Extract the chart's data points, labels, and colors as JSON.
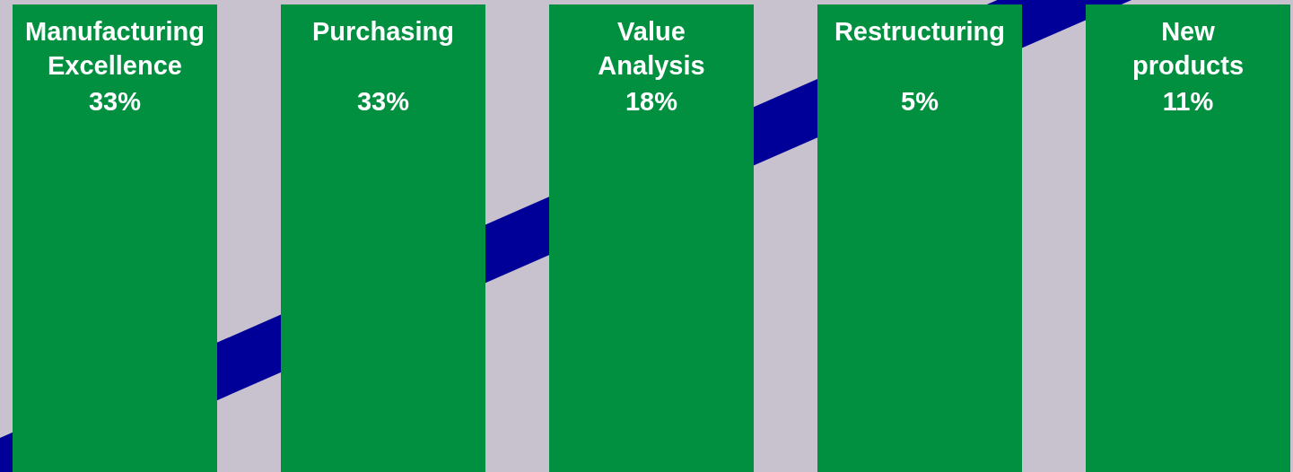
{
  "chart_data": {
    "type": "other",
    "categories": [
      "Manufacturing Excellence",
      "Purchasing",
      "Value Analysis",
      "Restructuring",
      "New products"
    ],
    "values": [
      33,
      33,
      18,
      5,
      11
    ],
    "value_labels": [
      "33%",
      "33%",
      "18%",
      "5%",
      "11%"
    ],
    "color": "#009040"
  }
}
